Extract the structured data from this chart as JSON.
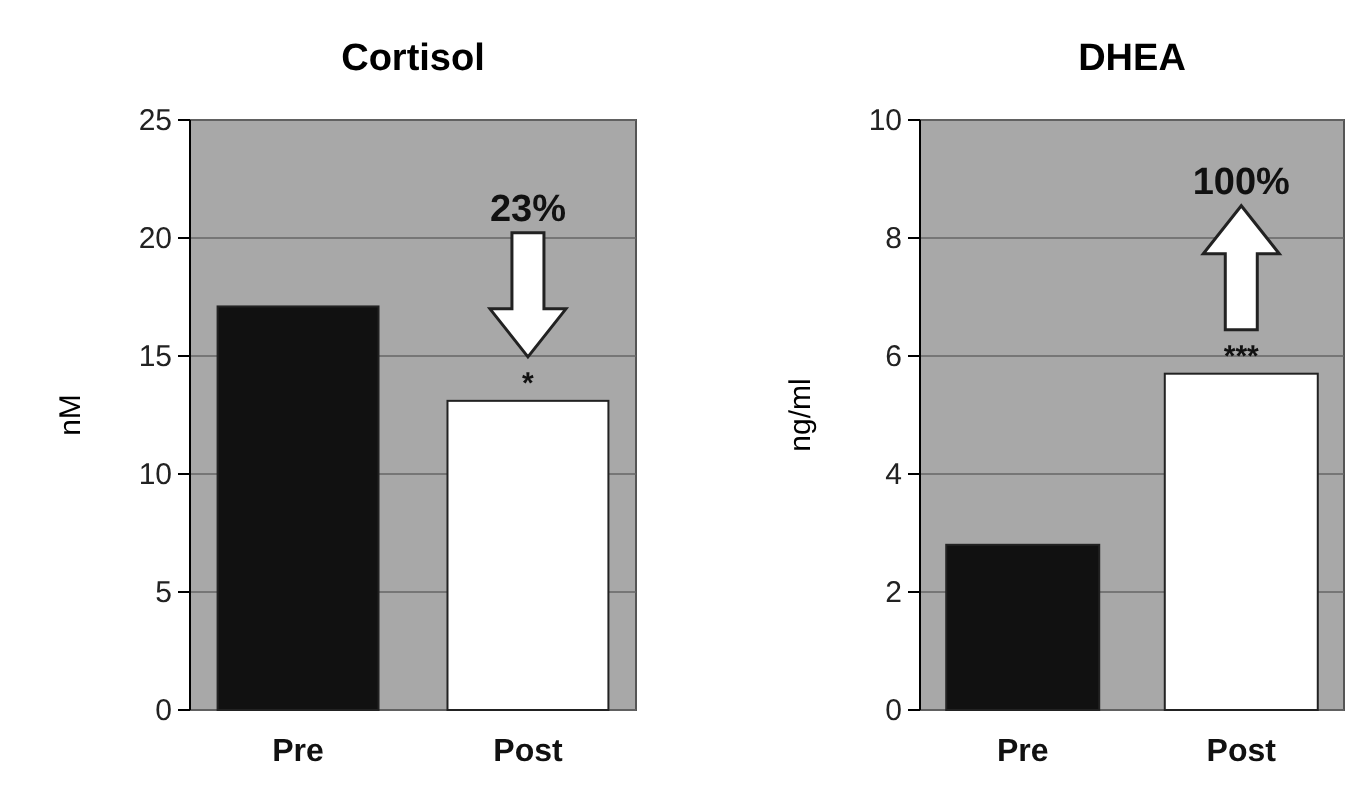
{
  "chart_data": [
    {
      "type": "bar",
      "title": "Cortisol",
      "ylabel": "nM",
      "categories": [
        "Pre",
        "Post"
      ],
      "values": [
        17.1,
        13.1
      ],
      "colors": [
        "#111111",
        "#ffffff"
      ],
      "ylim": [
        0,
        25
      ],
      "yticks": [
        0,
        5,
        10,
        15,
        20,
        25
      ],
      "grid": "y",
      "annotations": [
        "23%",
        {
          "text": "*",
          "x": "Post",
          "y": 13.1
        }
      ]
    },
    {
      "type": "bar",
      "title": "DHEA",
      "ylabel": "ng/ml",
      "categories": [
        "Pre",
        "Post"
      ],
      "values": [
        2.8,
        5.7
      ],
      "colors": [
        "#111111",
        "#ffffff"
      ],
      "ylim": [
        0,
        10
      ],
      "yticks": [
        0,
        2,
        4,
        6,
        8,
        10
      ],
      "grid": "y",
      "annotations": [
        "100%",
        {
          "text": "***",
          "x": "Post",
          "y": 5.7
        }
      ]
    }
  ]
}
